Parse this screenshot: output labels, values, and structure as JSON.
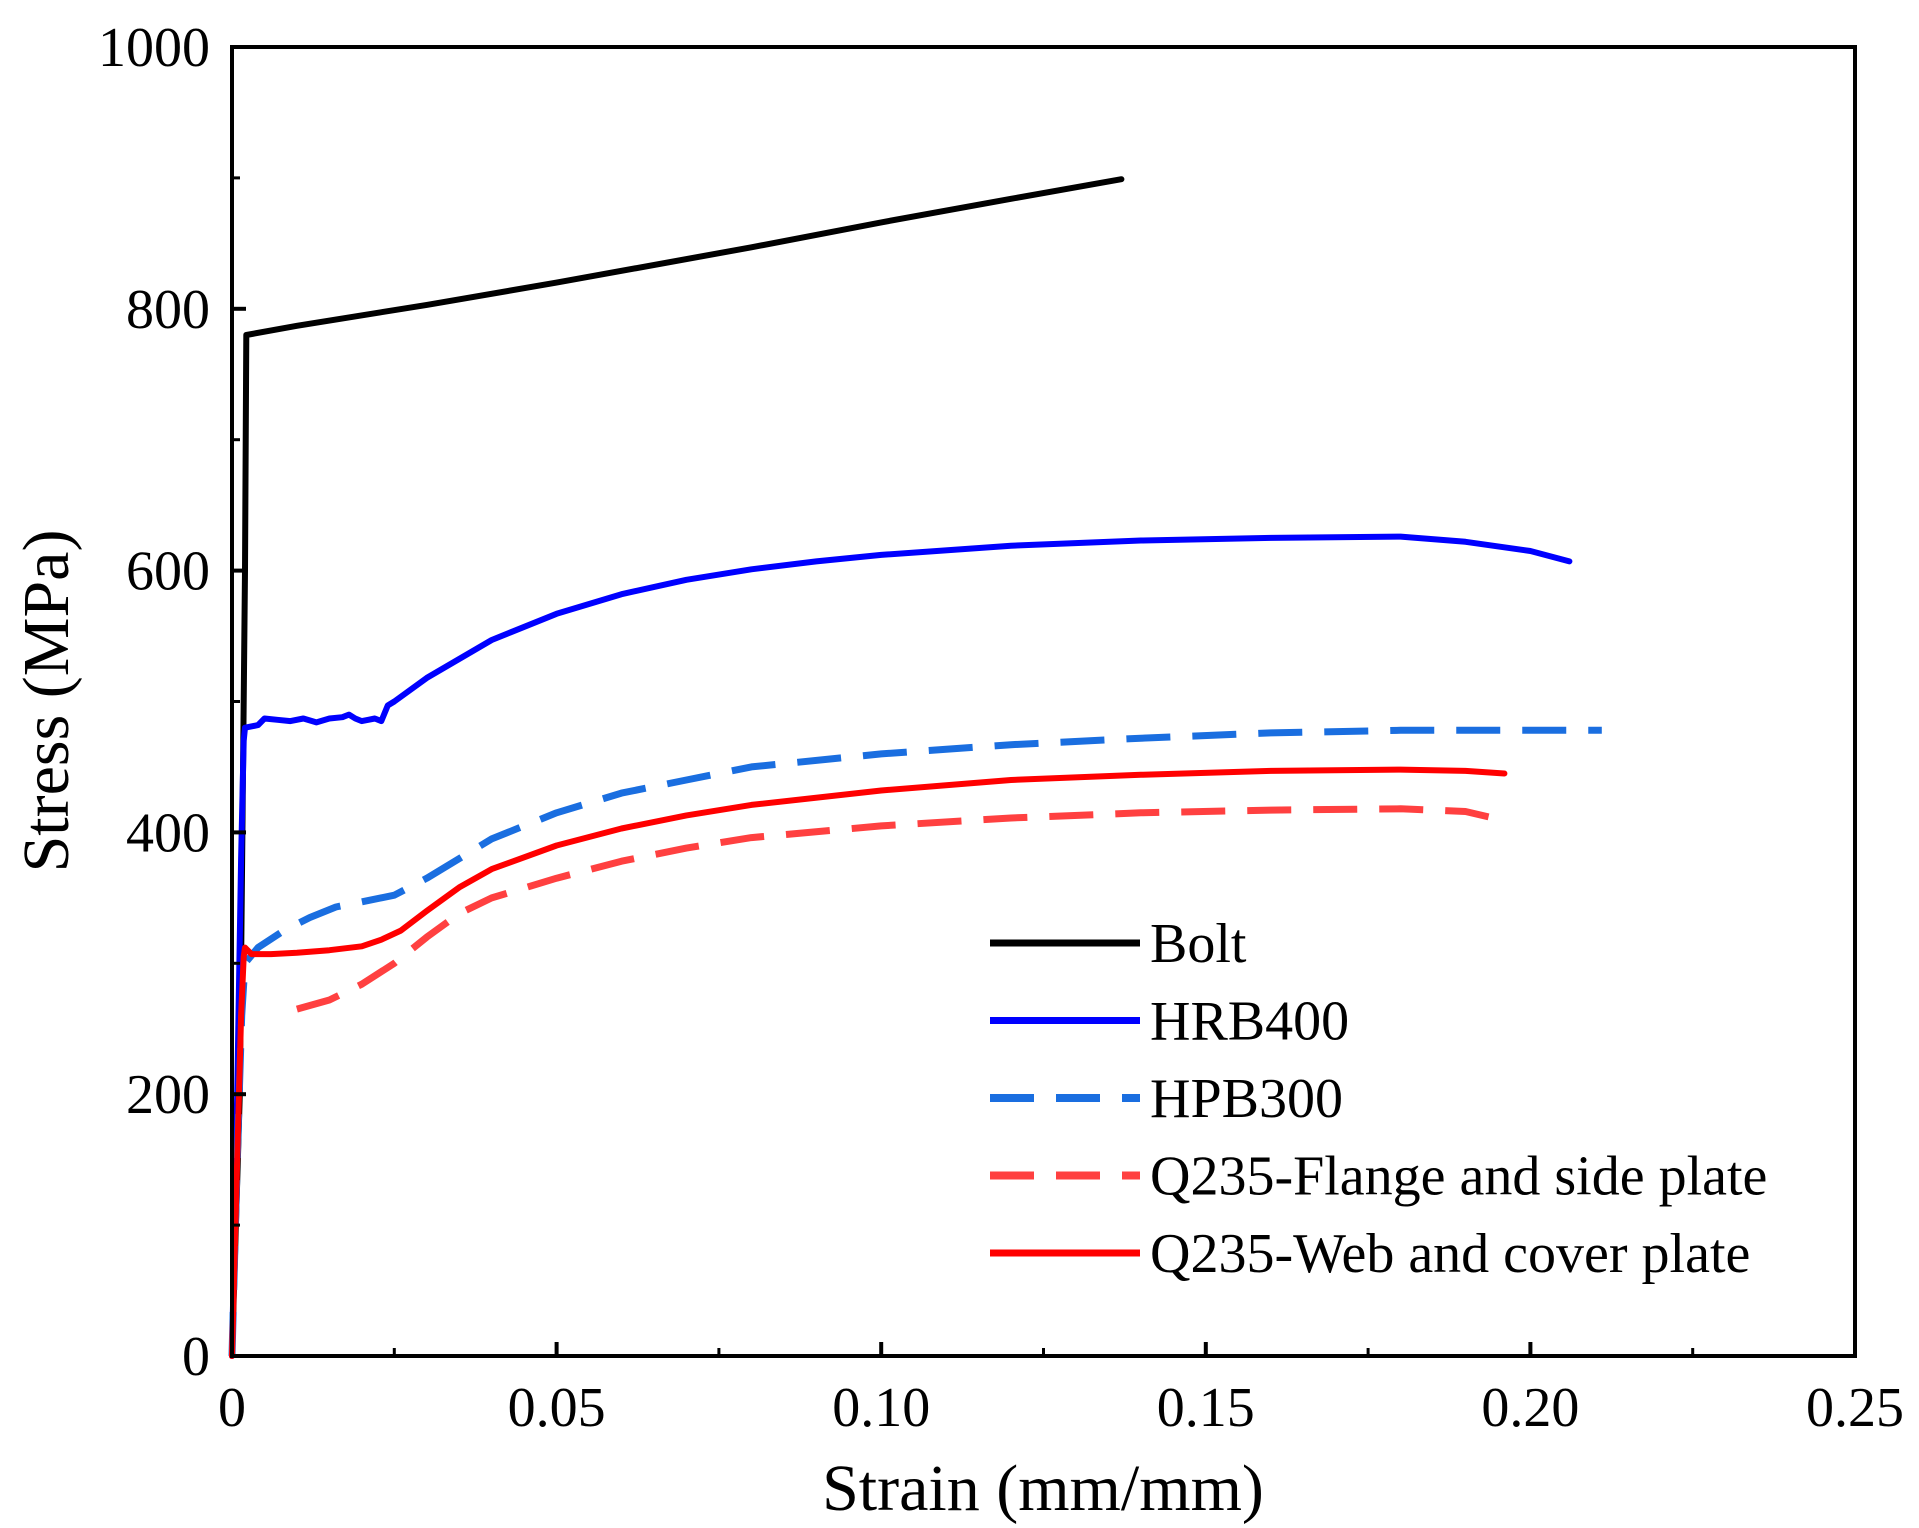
{
  "chart_data": {
    "type": "line",
    "title": "",
    "xlabel": "Strain (mm/mm)",
    "ylabel": "Stress (MPa)",
    "xlim": [
      0,
      0.25
    ],
    "ylim": [
      0,
      1000
    ],
    "x_ticks": [
      {
        "value": 0,
        "label": "0"
      },
      {
        "value": 0.05,
        "label": "0.05"
      },
      {
        "value": 0.1,
        "label": "0.10"
      },
      {
        "value": 0.15,
        "label": "0.15"
      },
      {
        "value": 0.2,
        "label": "0.20"
      },
      {
        "value": 0.25,
        "label": "0.25"
      }
    ],
    "y_ticks": [
      {
        "value": 0,
        "label": "0"
      },
      {
        "value": 200,
        "label": "200"
      },
      {
        "value": 400,
        "label": "400"
      },
      {
        "value": 600,
        "label": "600"
      },
      {
        "value": 800,
        "label": "800"
      },
      {
        "value": 1000,
        "label": "1000"
      }
    ],
    "grid": false,
    "legend_position": "bottom-right",
    "series": [
      {
        "name": "Bolt",
        "color": "#000000",
        "dash": "solid",
        "points": [
          [
            0,
            0
          ],
          [
            0.0012,
            200
          ],
          [
            0.002,
            600
          ],
          [
            0.0022,
            780
          ],
          [
            0.01,
            787
          ],
          [
            0.03,
            803
          ],
          [
            0.05,
            820
          ],
          [
            0.08,
            847
          ],
          [
            0.1,
            866
          ],
          [
            0.12,
            884
          ],
          [
            0.137,
            899
          ]
        ]
      },
      {
        "name": "HRB400",
        "color": "#0000ff",
        "dash": "solid",
        "points": [
          [
            0,
            0
          ],
          [
            0.0008,
            200
          ],
          [
            0.0014,
            380
          ],
          [
            0.0018,
            470
          ],
          [
            0.002,
            480
          ],
          [
            0.004,
            482
          ],
          [
            0.005,
            487
          ],
          [
            0.007,
            486
          ],
          [
            0.009,
            485
          ],
          [
            0.011,
            487
          ],
          [
            0.013,
            484
          ],
          [
            0.015,
            487
          ],
          [
            0.017,
            488
          ],
          [
            0.018,
            490
          ],
          [
            0.019,
            487
          ],
          [
            0.02,
            485
          ],
          [
            0.021,
            486
          ],
          [
            0.022,
            487
          ],
          [
            0.023,
            485
          ],
          [
            0.024,
            497
          ],
          [
            0.025,
            500
          ],
          [
            0.03,
            518
          ],
          [
            0.04,
            547
          ],
          [
            0.05,
            567
          ],
          [
            0.06,
            582
          ],
          [
            0.07,
            593
          ],
          [
            0.08,
            601
          ],
          [
            0.09,
            607
          ],
          [
            0.1,
            612
          ],
          [
            0.12,
            619
          ],
          [
            0.14,
            623
          ],
          [
            0.16,
            625
          ],
          [
            0.18,
            626
          ],
          [
            0.19,
            622
          ],
          [
            0.2,
            615
          ],
          [
            0.206,
            607
          ]
        ]
      },
      {
        "name": "HPB300",
        "color": "#1a6ee0",
        "dash": "dashed",
        "points": [
          [
            0,
            0
          ],
          [
            0.0008,
            150
          ],
          [
            0.0015,
            260
          ],
          [
            0.002,
            300
          ],
          [
            0.004,
            312
          ],
          [
            0.008,
            325
          ],
          [
            0.012,
            335
          ],
          [
            0.016,
            343
          ],
          [
            0.02,
            347
          ],
          [
            0.025,
            352
          ],
          [
            0.03,
            365
          ],
          [
            0.04,
            395
          ],
          [
            0.05,
            415
          ],
          [
            0.06,
            430
          ],
          [
            0.07,
            440
          ],
          [
            0.08,
            450
          ],
          [
            0.1,
            460
          ],
          [
            0.12,
            467
          ],
          [
            0.14,
            472
          ],
          [
            0.16,
            476
          ],
          [
            0.18,
            478
          ],
          [
            0.2,
            478
          ],
          [
            0.211,
            478
          ]
        ]
      },
      {
        "name": "Q235-Flange and side plate",
        "color": "#ff4040",
        "dash": "dashed",
        "points": [
          [
            0.01,
            265
          ],
          [
            0.015,
            272
          ],
          [
            0.02,
            284
          ],
          [
            0.025,
            300
          ],
          [
            0.03,
            320
          ],
          [
            0.035,
            338
          ],
          [
            0.04,
            350
          ],
          [
            0.05,
            365
          ],
          [
            0.06,
            378
          ],
          [
            0.07,
            388
          ],
          [
            0.08,
            396
          ],
          [
            0.1,
            405
          ],
          [
            0.12,
            411
          ],
          [
            0.14,
            415
          ],
          [
            0.16,
            417
          ],
          [
            0.18,
            418
          ],
          [
            0.19,
            416
          ],
          [
            0.196,
            409
          ]
        ]
      },
      {
        "name": "Q235-Web and cover plate",
        "color": "#ff0000",
        "dash": "solid",
        "points": [
          [
            0,
            0
          ],
          [
            0.0008,
            150
          ],
          [
            0.0014,
            260
          ],
          [
            0.0018,
            305
          ],
          [
            0.002,
            312
          ],
          [
            0.003,
            307
          ],
          [
            0.006,
            307
          ],
          [
            0.01,
            308
          ],
          [
            0.015,
            310
          ],
          [
            0.02,
            313
          ],
          [
            0.023,
            318
          ],
          [
            0.026,
            325
          ],
          [
            0.03,
            340
          ],
          [
            0.035,
            358
          ],
          [
            0.04,
            372
          ],
          [
            0.05,
            390
          ],
          [
            0.06,
            403
          ],
          [
            0.07,
            413
          ],
          [
            0.08,
            421
          ],
          [
            0.1,
            432
          ],
          [
            0.12,
            440
          ],
          [
            0.14,
            444
          ],
          [
            0.16,
            447
          ],
          [
            0.18,
            448
          ],
          [
            0.19,
            447
          ],
          [
            0.196,
            445
          ]
        ]
      }
    ]
  }
}
